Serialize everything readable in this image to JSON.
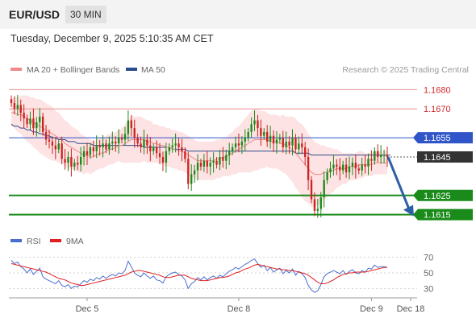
{
  "header": {
    "symbol": "EUR/USD",
    "timeframe": "30 MIN"
  },
  "timestamp": "Tuesday, December 9, 2025 5:10:35 AM CET",
  "legend": {
    "ma20": "MA 20 + Bollinger Bands",
    "ma50": "MA 50",
    "credit": "Research © 2025 Trading Central",
    "colors": {
      "ma20": "#f08a8a",
      "ma50": "#2a4d8f",
      "band_fill": "#fde3e3"
    }
  },
  "rsi_legend": {
    "rsi": "RSI",
    "ma": "9MA",
    "colors": {
      "rsi": "#4a6fd0",
      "ma": "#e02020"
    }
  },
  "chart_data": [
    {
      "type": "candlestick",
      "x_tick_labels": [
        "Dec 5",
        "Dec 8",
        "Dec 9",
        "Dec 18"
      ],
      "ylim": [
        1.1609,
        1.1686
      ],
      "levels": [
        {
          "value": 1.168,
          "label": "1.1680",
          "style": "resistance-thin",
          "color": "#e56b6b"
        },
        {
          "value": 1.167,
          "label": "1.1670",
          "style": "resistance-thin",
          "color": "#e56b6b"
        },
        {
          "value": 1.1655,
          "label": "1.1655",
          "style": "pivot",
          "color": "#2f55c8"
        },
        {
          "value": 1.1645,
          "label": "1.1645",
          "style": "last-price",
          "color": "#333333"
        },
        {
          "value": 1.1625,
          "label": "1.1625",
          "style": "support",
          "color": "#1a8a1a"
        },
        {
          "value": 1.1615,
          "label": "1.1615",
          "style": "support",
          "color": "#1a8a1a"
        }
      ],
      "close": [
        1.1673,
        1.167,
        1.1672,
        1.1668,
        1.1665,
        1.1662,
        1.1665,
        1.166,
        1.1663,
        1.1666,
        1.1658,
        1.1654,
        1.1653,
        1.1651,
        1.1649,
        1.1652,
        1.1644,
        1.1642,
        1.1645,
        1.164,
        1.1642,
        1.1641,
        1.1645,
        1.1648,
        1.1646,
        1.165,
        1.1648,
        1.1651,
        1.165,
        1.1652,
        1.1649,
        1.1652,
        1.1653,
        1.1652,
        1.1655,
        1.1654,
        1.1657,
        1.1664,
        1.166,
        1.1655,
        1.1652,
        1.165,
        1.1654,
        1.1651,
        1.1648,
        1.165,
        1.1647,
        1.1645,
        1.1642,
        1.1648,
        1.165,
        1.1651,
        1.1652,
        1.165,
        1.1648,
        1.1644,
        1.1631,
        1.1636,
        1.1638,
        1.1642,
        1.164,
        1.1643,
        1.164,
        1.1642,
        1.1643,
        1.1641,
        1.1645,
        1.1643,
        1.1646,
        1.1648,
        1.165,
        1.1652,
        1.1651,
        1.1653,
        1.1655,
        1.1658,
        1.1662,
        1.1664,
        1.166,
        1.1656,
        1.1658,
        1.1653,
        1.1656,
        1.1652,
        1.1654,
        1.1655,
        1.165,
        1.1653,
        1.1651,
        1.1655,
        1.1649,
        1.1652,
        1.165,
        1.1645,
        1.1633,
        1.1623,
        1.1617,
        1.1618,
        1.1624,
        1.1633,
        1.1637,
        1.1639,
        1.1641,
        1.164,
        1.1638,
        1.1641,
        1.1637,
        1.164,
        1.1642,
        1.1639,
        1.1638,
        1.1641,
        1.164,
        1.1644,
        1.1643,
        1.1648,
        1.1645,
        1.1646,
        1.1646,
        1.1645
      ],
      "ma20": [
        1.1668,
        1.1668,
        1.1667,
        1.1667,
        1.1666,
        1.1665,
        1.1664,
        1.1663,
        1.1662,
        1.1661,
        1.166,
        1.1659,
        1.1658,
        1.1657,
        1.1656,
        1.1655,
        1.1654,
        1.1652,
        1.1651,
        1.165,
        1.1649,
        1.1648,
        1.1647,
        1.1646,
        1.1646,
        1.1645,
        1.1645,
        1.1646,
        1.1647,
        1.1647,
        1.1648,
        1.1649,
        1.1649,
        1.165,
        1.1651,
        1.1651,
        1.1652,
        1.1653,
        1.1654,
        1.1654,
        1.1654,
        1.1654,
        1.1654,
        1.1653,
        1.1653,
        1.1652,
        1.1652,
        1.1651,
        1.1651,
        1.165,
        1.165,
        1.1649,
        1.1649,
        1.1648,
        1.1648,
        1.1647,
        1.1646,
        1.1645,
        1.1644,
        1.1643,
        1.1643,
        1.1643,
        1.1643,
        1.1643,
        1.1643,
        1.1644,
        1.1644,
        1.1645,
        1.1645,
        1.1646,
        1.1647,
        1.1648,
        1.1649,
        1.165,
        1.1651,
        1.1652,
        1.1653,
        1.1654,
        1.1654,
        1.1654,
        1.1654,
        1.1654,
        1.1653,
        1.1653,
        1.1653,
        1.1652,
        1.1652,
        1.1651,
        1.165,
        1.1649,
        1.1647,
        1.1645,
        1.1643,
        1.1641,
        1.1639,
        1.1637,
        1.1636,
        1.1636,
        1.1636,
        1.1637,
        1.1637,
        1.1638,
        1.1638,
        1.1639,
        1.1639,
        1.1639,
        1.1639,
        1.164,
        1.164,
        1.164,
        1.1641,
        1.1641,
        1.1641,
        1.1641,
        1.1641,
        1.1642,
        1.1642,
        1.1642,
        1.1642,
        1.1642
      ],
      "bb_width": [
        0.0007,
        0.0008,
        0.0009,
        0.001,
        0.0011,
        0.0012,
        0.0012,
        0.0013,
        0.0013,
        0.0014,
        0.0014,
        0.0014,
        0.0014,
        0.0014,
        0.0013,
        0.0013,
        0.0012,
        0.0012,
        0.0012,
        0.0011,
        0.0011,
        0.0011,
        0.001,
        0.001,
        0.0009,
        0.0009,
        0.0008,
        0.0008,
        0.0008,
        0.0008,
        0.0008,
        0.0008,
        0.0008,
        0.0008,
        0.0008,
        0.0009,
        0.001,
        0.0011,
        0.0012,
        0.0012,
        0.0012,
        0.0012,
        0.0011,
        0.0011,
        0.0011,
        0.001,
        0.001,
        0.001,
        0.001,
        0.001,
        0.001,
        0.001,
        0.001,
        0.001,
        0.001,
        0.001,
        0.001,
        0.001,
        0.001,
        0.001,
        0.001,
        0.001,
        0.001,
        0.001,
        0.001,
        0.001,
        0.001,
        0.001,
        0.001,
        0.0011,
        0.0011,
        0.0012,
        0.0012,
        0.0013,
        0.0014,
        0.0015,
        0.0016,
        0.0016,
        0.0016,
        0.0015,
        0.0015,
        0.0014,
        0.0014,
        0.0014,
        0.0014,
        0.0014,
        0.0015,
        0.0015,
        0.0016,
        0.0017,
        0.0018,
        0.0018,
        0.0019,
        0.0019,
        0.0018,
        0.0018,
        0.0017,
        0.0016,
        0.0015,
        0.0014,
        0.0013,
        0.0012,
        0.0011,
        0.001,
        0.0009,
        0.0008,
        0.0008,
        0.0007,
        0.0007,
        0.0007,
        0.0007,
        0.0007,
        0.0006,
        0.0006,
        0.0006,
        0.0006,
        0.0006,
        0.0006,
        0.0006,
        0.0006
      ],
      "ma50": [
        1.1662,
        1.1661,
        1.1661,
        1.166,
        1.166,
        1.1659,
        1.1659,
        1.1658,
        1.1658,
        1.1657,
        1.1657,
        1.1656,
        1.1656,
        1.1655,
        1.1655,
        1.1654,
        1.1654,
        1.1654,
        1.1653,
        1.1653,
        1.1653,
        1.1652,
        1.1652,
        1.1652,
        1.1652,
        1.1652,
        1.1651,
        1.1651,
        1.1651,
        1.1651,
        1.1651,
        1.1651,
        1.1651,
        1.1651,
        1.1651,
        1.1651,
        1.1651,
        1.1651,
        1.1651,
        1.1651,
        1.1651,
        1.1651,
        1.165,
        1.165,
        1.165,
        1.165,
        1.165,
        1.165,
        1.165,
        1.165,
        1.165,
        1.1649,
        1.1649,
        1.1649,
        1.1649,
        1.1649,
        1.1648,
        1.1648,
        1.1648,
        1.1648,
        1.1648,
        1.1648,
        1.1648,
        1.1648,
        1.1648,
        1.1648,
        1.1648,
        1.1648,
        1.1648,
        1.1648,
        1.1648,
        1.1648,
        1.1648,
        1.1648,
        1.1648,
        1.1648,
        1.1648,
        1.1648,
        1.1648,
        1.1648,
        1.1648,
        1.1648,
        1.1648,
        1.1648,
        1.1648,
        1.1648,
        1.1648,
        1.1648,
        1.1648,
        1.1648,
        1.1647,
        1.1647,
        1.1647,
        1.1647,
        1.1647,
        1.1646,
        1.1646,
        1.1646,
        1.1646,
        1.1646,
        1.1646,
        1.1646,
        1.1646,
        1.1646,
        1.1646,
        1.1646,
        1.1646,
        1.1646,
        1.1646,
        1.1646,
        1.1646,
        1.1646,
        1.1646,
        1.1646,
        1.1646,
        1.1646,
        1.1646,
        1.1646,
        1.1646,
        1.1646,
        1.1646
      ],
      "projection": {
        "from": 1.1645,
        "to": 1.1615,
        "color": "#2d5fa6"
      }
    },
    {
      "type": "line",
      "name": "RSI",
      "yticks": [
        70,
        50,
        30
      ],
      "ylim": [
        20,
        80
      ],
      "rsi": [
        66,
        62,
        64,
        58,
        55,
        50,
        55,
        48,
        52,
        56,
        45,
        42,
        40,
        38,
        36,
        40,
        34,
        32,
        35,
        30,
        33,
        32,
        36,
        40,
        38,
        42,
        40,
        44,
        42,
        46,
        43,
        46,
        48,
        46,
        50,
        49,
        53,
        65,
        58,
        50,
        47,
        45,
        50,
        46,
        43,
        46,
        41,
        40,
        37,
        45,
        48,
        50,
        51,
        48,
        46,
        41,
        30,
        36,
        39,
        44,
        41,
        45,
        41,
        44,
        46,
        43,
        47,
        45,
        49,
        52,
        54,
        57,
        55,
        58,
        61,
        63,
        66,
        68,
        62,
        57,
        60,
        53,
        57,
        51,
        54,
        56,
        49,
        53,
        50,
        55,
        47,
        52,
        49,
        44,
        34,
        28,
        25,
        27,
        35,
        45,
        49,
        51,
        53,
        51,
        49,
        53,
        48,
        52,
        54,
        50,
        49,
        53,
        51,
        56,
        55,
        60,
        57,
        58,
        58,
        57
      ],
      "ma9": [
        62,
        61,
        60,
        59,
        58,
        57,
        56,
        55,
        54,
        53,
        52,
        51,
        49,
        47,
        45,
        43,
        42,
        41,
        39,
        37,
        36,
        35,
        34,
        34,
        35,
        36,
        37,
        38,
        39,
        40,
        41,
        42,
        43,
        44,
        45,
        46,
        47,
        49,
        51,
        52,
        53,
        53,
        52,
        51,
        50,
        49,
        48,
        47,
        45,
        44,
        44,
        45,
        46,
        47,
        47,
        47,
        45,
        43,
        42,
        41,
        40,
        40,
        40,
        41,
        42,
        43,
        44,
        44,
        45,
        46,
        48,
        50,
        51,
        53,
        55,
        56,
        58,
        60,
        61,
        60,
        59,
        58,
        57,
        56,
        55,
        55,
        54,
        54,
        53,
        53,
        52,
        51,
        50,
        49,
        47,
        44,
        41,
        38,
        36,
        36,
        37,
        39,
        41,
        44,
        46,
        48,
        49,
        50,
        50,
        51,
        51,
        51,
        51,
        52,
        53,
        54,
        55,
        56,
        57,
        57
      ]
    }
  ]
}
